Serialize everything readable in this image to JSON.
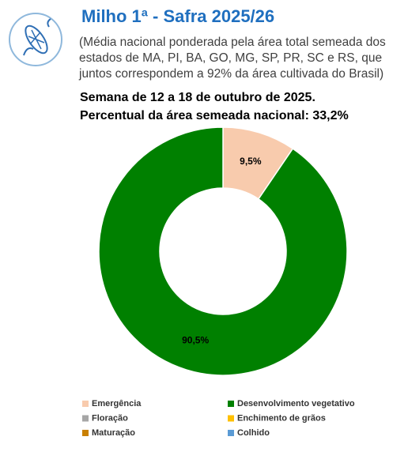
{
  "chart_data": {
    "type": "donut",
    "title": "Milho 1ª - Safra 2025/26",
    "subtitle_lines": [
      "(Média nacional ponderada pela área total semeada dos",
      "estados de MA, PI, BA, GO, MG, SP, PR, SC e RS, que",
      "juntos correspondem a 92% da área cultivada do Brasil)"
    ],
    "heading_lines": [
      "Semana de 12 a 18 de outubro de 2025.",
      "Percentual da área semeada nacional: 33,2%"
    ],
    "categories": [
      "Emergência",
      "Desenvolvimento vegetativo",
      "Floração",
      "Enchimento de grãos",
      "Maturação",
      "Colhido"
    ],
    "values": [
      9.5,
      90.5,
      0,
      0,
      0,
      0
    ],
    "value_labels": [
      "9,5%",
      "90,5%",
      null,
      null,
      null,
      null
    ],
    "colors": [
      "#f8cbad",
      "#008000",
      "#a6a6a6",
      "#ffc000",
      "#c98000",
      "#5b9bd5"
    ]
  }
}
